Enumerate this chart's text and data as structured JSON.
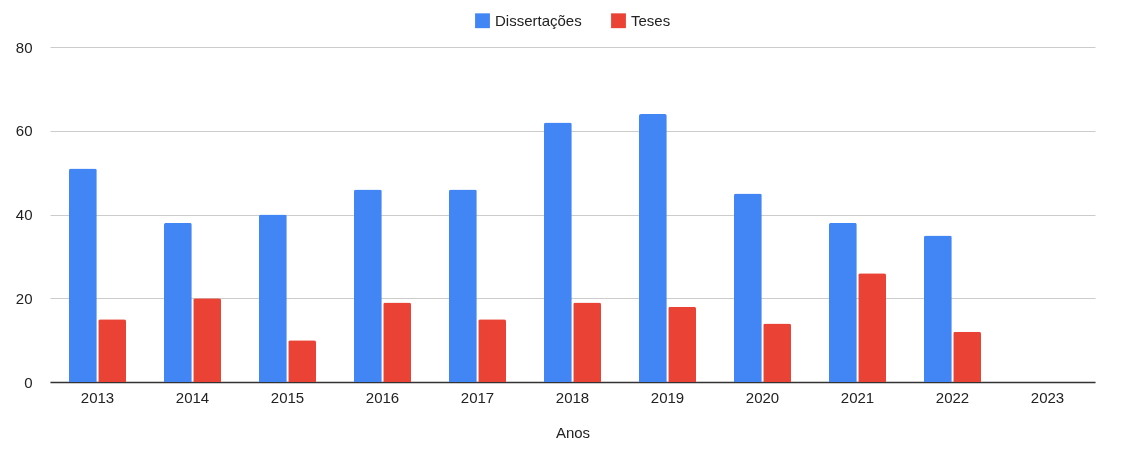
{
  "chart_data": {
    "type": "bar",
    "xlabel": "Anos",
    "categories": [
      "2013",
      "2014",
      "2015",
      "2016",
      "2017",
      "2018",
      "2019",
      "2020",
      "2021",
      "2022",
      "2023"
    ],
    "series": [
      {
        "name": "Dissertações",
        "color": "#4285f4",
        "values": [
          51,
          38,
          40,
          46,
          46,
          62,
          64,
          45,
          38,
          35,
          null
        ]
      },
      {
        "name": "Teses",
        "color": "#ea4335",
        "values": [
          15,
          20,
          10,
          19,
          15,
          19,
          18,
          14,
          26,
          12,
          null
        ]
      }
    ],
    "ylim": [
      0,
      80
    ],
    "yticks": [
      0,
      20,
      40,
      60,
      80
    ],
    "grid": "y",
    "legend": "top"
  }
}
